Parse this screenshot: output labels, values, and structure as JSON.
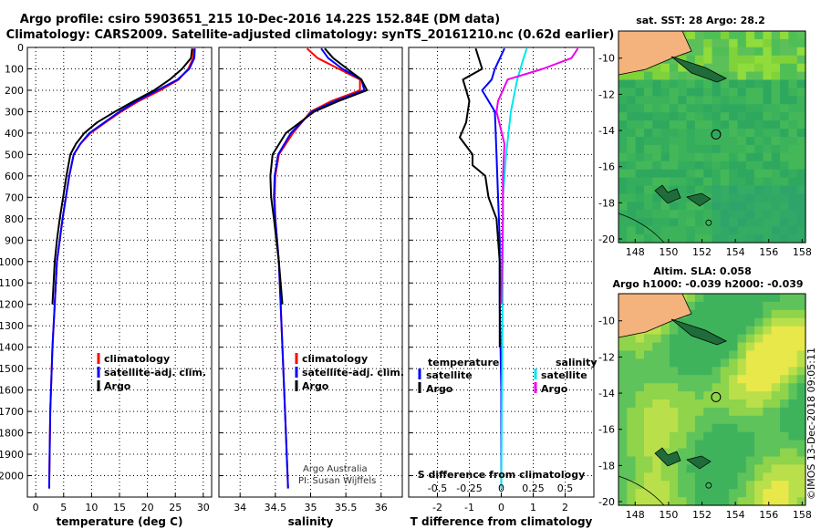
{
  "title_line1": "Argo profile: csiro 5903651_215 10-Dec-2016 14.22S 152.84E (DM data)",
  "title_line2": "Climatology: CARS2009. Satellite-adjusted climatology: synTS_20161210.nc (0.62d earlier)",
  "colors": {
    "climatology": "#ff0000",
    "satellite": "#0000ff",
    "argo": "#000000",
    "sal_satellite": "#00e5ee",
    "sal_argo": "#ee00ee"
  },
  "chart_data": [
    {
      "id": "temp",
      "type": "line",
      "xlabel": "temperature (deg C)",
      "ylabel": "",
      "xlim": [
        -1.5,
        31.5
      ],
      "ylim": [
        2100,
        0
      ],
      "xticks": [
        0,
        5,
        10,
        15,
        20,
        25,
        30
      ],
      "yticks": [
        0,
        100,
        200,
        300,
        400,
        500,
        600,
        700,
        800,
        900,
        1000,
        1100,
        1200,
        1300,
        1400,
        1500,
        1600,
        1700,
        1800,
        1900,
        2000
      ],
      "series": [
        {
          "name": "climatology",
          "color": "#ff0000",
          "x": [
            28.3,
            28.2,
            27.3,
            25.6,
            22.3,
            18.5,
            15.3,
            12.5,
            9.8,
            8.0,
            6.8,
            6.0,
            5.4,
            4.8,
            4.3,
            3.8,
            3.4,
            3.0,
            2.6,
            2.4
          ],
          "y": [
            5,
            50,
            100,
            150,
            200,
            250,
            300,
            350,
            400,
            450,
            500,
            600,
            700,
            800,
            900,
            1000,
            1200,
            1400,
            1700,
            2060
          ]
        },
        {
          "name": "satellite-adj. clim.",
          "color": "#0000ff",
          "x": [
            28.5,
            28.4,
            27.5,
            25.4,
            21.8,
            18.1,
            15.0,
            12.3,
            9.6,
            8.0,
            6.8,
            6.0,
            5.4,
            4.8,
            4.3,
            3.8,
            3.4,
            3.0,
            2.6,
            2.4
          ],
          "y": [
            5,
            50,
            100,
            150,
            200,
            250,
            300,
            350,
            400,
            450,
            500,
            600,
            700,
            800,
            900,
            1000,
            1200,
            1400,
            1700,
            2060
          ]
        },
        {
          "name": "Argo",
          "color": "#000000",
          "x": [
            28.0,
            27.8,
            26.2,
            24.0,
            21.2,
            17.6,
            14.2,
            11.0,
            8.7,
            7.2,
            6.2,
            5.5,
            4.9,
            4.3,
            3.8,
            3.4,
            3.0
          ],
          "y": [
            5,
            50,
            100,
            150,
            200,
            250,
            300,
            350,
            400,
            450,
            500,
            600,
            700,
            800,
            900,
            1000,
            1200
          ]
        }
      ],
      "legend": [
        "climatology",
        "satellite-adj. clim.",
        "Argo"
      ]
    },
    {
      "id": "sal",
      "type": "line",
      "xlabel": "salinity",
      "ylabel": "",
      "xlim": [
        33.7,
        36.3
      ],
      "ylim": [
        2100,
        0
      ],
      "xticks": [
        34,
        34.5,
        35,
        35.5,
        36
      ],
      "series": [
        {
          "name": "climatology",
          "color": "#ff0000",
          "x": [
            34.95,
            35.1,
            35.4,
            35.7,
            35.7,
            35.3,
            35.0,
            34.75,
            34.55,
            34.5,
            34.49,
            34.5,
            34.55,
            34.6,
            34.65,
            34.68
          ],
          "y": [
            5,
            50,
            100,
            150,
            200,
            250,
            300,
            400,
            500,
            600,
            700,
            800,
            1000,
            1400,
            1800,
            2060
          ]
        },
        {
          "name": "satellite-adj. clim.",
          "color": "#0000ff",
          "x": [
            35.15,
            35.25,
            35.45,
            35.72,
            35.76,
            35.35,
            35.02,
            34.72,
            34.54,
            34.49,
            34.48,
            34.5,
            34.55,
            34.6,
            34.65,
            34.68
          ],
          "y": [
            5,
            50,
            100,
            150,
            200,
            250,
            300,
            400,
            500,
            600,
            700,
            800,
            1000,
            1400,
            1800,
            2060
          ]
        },
        {
          "name": "Argo",
          "color": "#000000",
          "x": [
            35.2,
            35.32,
            35.52,
            35.72,
            35.8,
            35.4,
            35.05,
            34.65,
            34.46,
            34.43,
            34.44,
            34.48,
            34.55,
            34.6
          ],
          "y": [
            5,
            50,
            100,
            150,
            200,
            250,
            300,
            400,
            500,
            600,
            700,
            800,
            1000,
            1200
          ]
        }
      ],
      "legend": [
        "climatology",
        "satellite-adj. clim.",
        "Argo"
      ],
      "credit_line1": "Argo Australia",
      "credit_line2": "PI: Susan Wijffels"
    },
    {
      "id": "diff",
      "type": "line",
      "xlabel": "T difference from climatology",
      "xlabel_top": "S difference from climatology",
      "xlim": [
        -2.9,
        2.9
      ],
      "ylim": [
        2100,
        0
      ],
      "xticks": [
        -2,
        -1,
        0,
        1,
        2
      ],
      "top_ticks": [
        "-0.5",
        "-0.25",
        "0",
        "0.25",
        "0.5"
      ],
      "top_tick_values": [
        -2,
        -1,
        0,
        1,
        2
      ],
      "series": [
        {
          "name": "temperature satellite",
          "color": "#0000ff",
          "x": [
            0.1,
            -0.2,
            -0.3,
            -0.6,
            -0.2,
            -0.15,
            -0.1,
            -0.05,
            -0.05,
            0,
            0
          ],
          "y": [
            5,
            100,
            150,
            200,
            300,
            500,
            700,
            900,
            1200,
            1600,
            2060
          ]
        },
        {
          "name": "temperature Argo",
          "color": "#000000",
          "x": [
            -0.8,
            -0.6,
            -1.2,
            -1.0,
            -1.1,
            -1.3,
            -0.9,
            -0.9,
            -0.5,
            -0.4,
            -0.15,
            -0.05,
            -0.05
          ],
          "y": [
            5,
            100,
            150,
            250,
            350,
            420,
            500,
            550,
            600,
            700,
            800,
            1000,
            1400
          ]
        },
        {
          "name": "salinity satellite",
          "color": "#00e5ee",
          "x": [
            0.8,
            0.7,
            0.5,
            0.3,
            0.15,
            0.05,
            0.05,
            0
          ],
          "y": [
            5,
            50,
            150,
            300,
            500,
            700,
            1000,
            2060
          ]
        },
        {
          "name": "salinity Argo",
          "color": "#ee00ee",
          "x": [
            2.4,
            2.2,
            1.3,
            0.2,
            -0.1,
            -0.15,
            0.1,
            0.05,
            0.05,
            0
          ],
          "y": [
            5,
            50,
            100,
            150,
            250,
            300,
            450,
            600,
            800,
            1200
          ]
        }
      ],
      "legend_left_title": "temperature",
      "legend_right_title": "salinity",
      "legend_satellite": "satellite",
      "legend_argo": "Argo"
    }
  ],
  "maps": [
    {
      "title1": "sat. SST: 28 Argo: 28.2",
      "title2": "",
      "xticks": [
        "148",
        "150",
        "152",
        "154",
        "156",
        "158"
      ],
      "yticks": [
        "-10",
        "-12",
        "-14",
        "-16",
        "-18",
        "-20"
      ],
      "float_lon": 152.84,
      "float_lat": -14.22
    },
    {
      "title1": "Altim. SLA: 0.058",
      "title2": "Argo h1000: -0.039 h2000: -0.039",
      "xticks": [
        "148",
        "150",
        "152",
        "154",
        "156",
        "158"
      ],
      "yticks": [
        "-10",
        "-12",
        "-14",
        "-16",
        "-18",
        "-20"
      ],
      "float_lon": 152.84,
      "float_lat": -14.22
    }
  ],
  "footer_stamp": "©IMOS 13-Dec-2018 09:05:11"
}
